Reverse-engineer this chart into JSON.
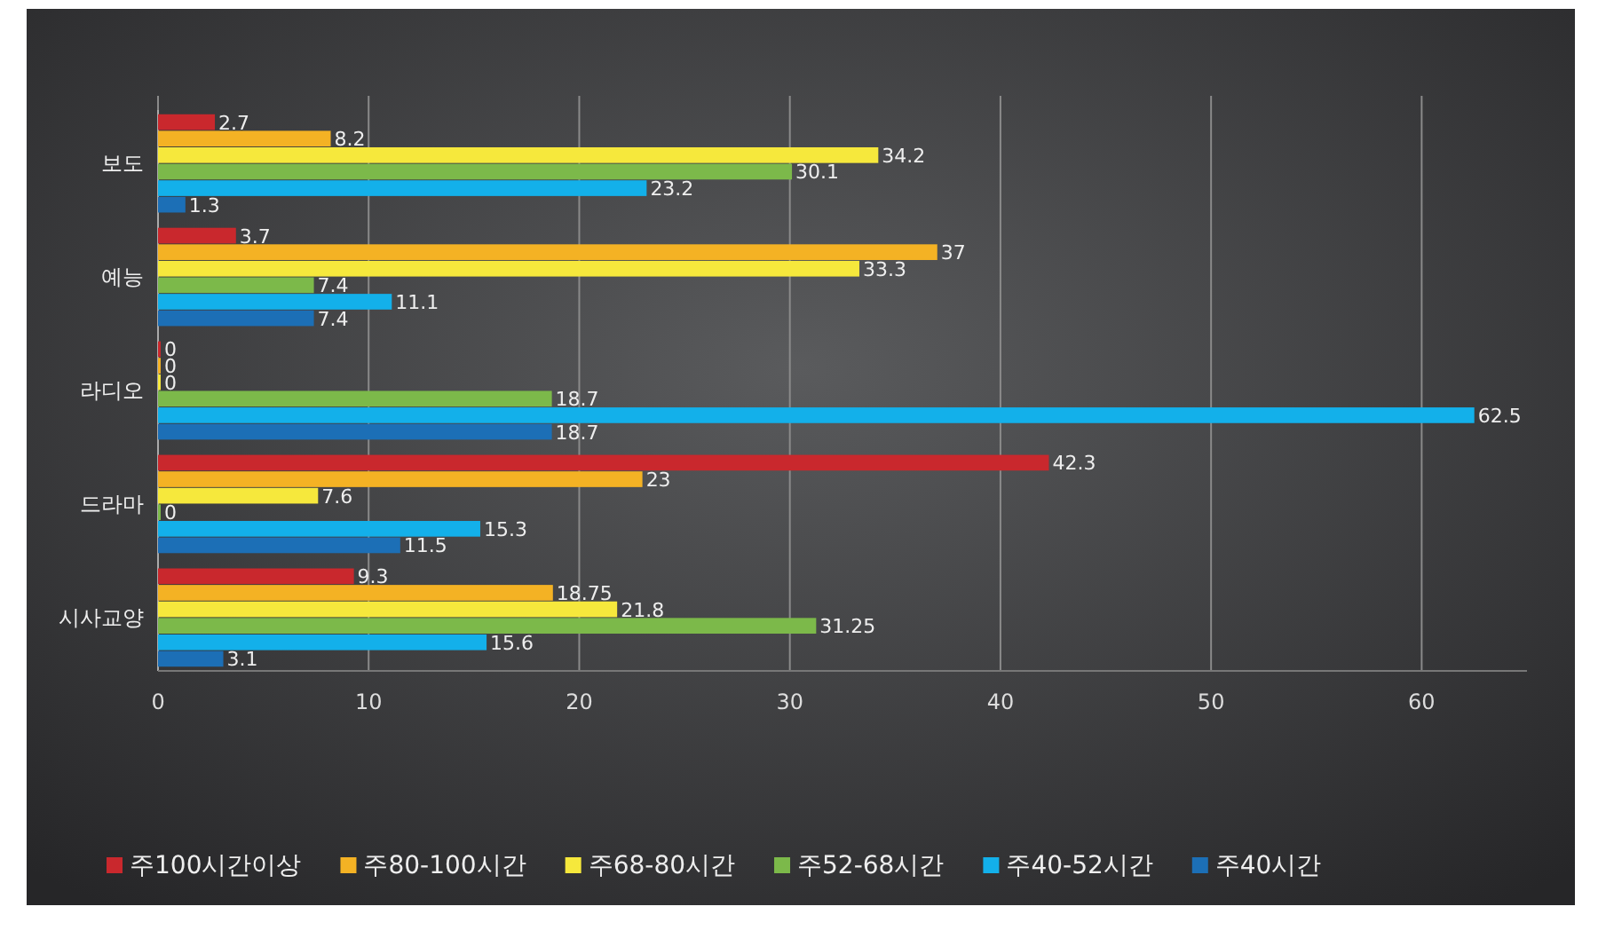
{
  "chart_data": {
    "type": "bar",
    "orientation": "horizontal",
    "categories": [
      "보도",
      "예능",
      "라디오",
      "드라마",
      "시사교양"
    ],
    "series": [
      {
        "name": "주100시간이상",
        "color": "#c9282d",
        "values": [
          2.7,
          3.7,
          0,
          42.3,
          9.3
        ]
      },
      {
        "name": "주80-100시간",
        "color": "#f4b224",
        "values": [
          8.2,
          37,
          0,
          23,
          18.75
        ]
      },
      {
        "name": "주68-80시간",
        "color": "#f6e83c",
        "values": [
          34.2,
          33.3,
          0,
          7.6,
          21.8
        ]
      },
      {
        "name": "주52-68시간",
        "color": "#7cb94a",
        "values": [
          30.1,
          7.4,
          18.7,
          0,
          31.25
        ]
      },
      {
        "name": "주40-52시간",
        "color": "#13b0ea",
        "values": [
          23.2,
          11.1,
          62.5,
          15.3,
          15.6
        ]
      },
      {
        "name": "주40시간",
        "color": "#1c6fb6",
        "values": [
          1.3,
          7.4,
          18.7,
          11.5,
          3.1
        ]
      }
    ],
    "xlim": [
      0,
      65
    ],
    "xticks": [
      0,
      10,
      20,
      30,
      40,
      50,
      60
    ],
    "grid": "x",
    "legend": "bottom",
    "data_labels": true
  }
}
